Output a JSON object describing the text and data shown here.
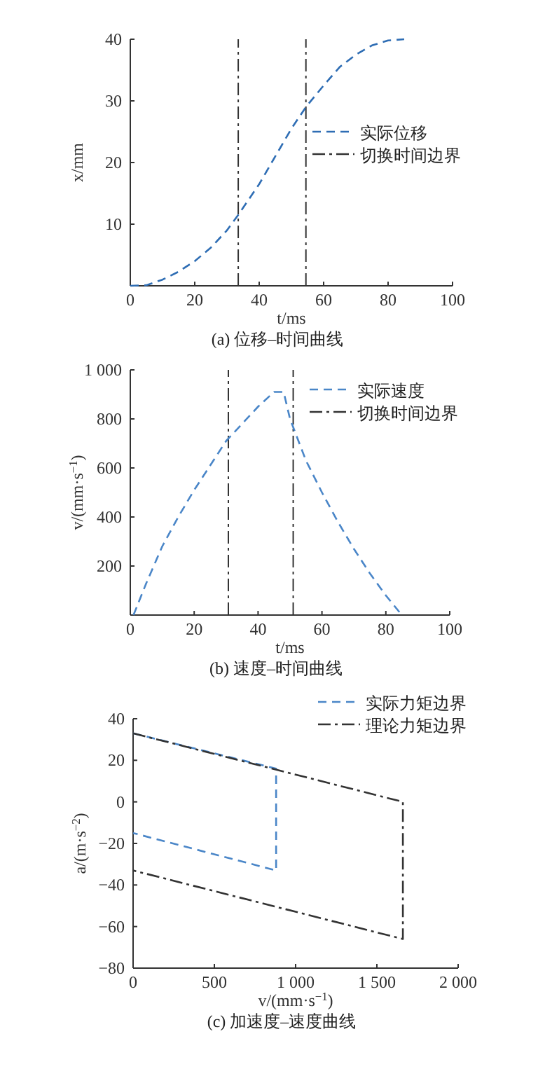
{
  "chart_data": [
    {
      "type": "line",
      "title": "(a) 位移–时间曲线",
      "xlabel": "t/ms",
      "ylabel": "x/mm",
      "xlim": [
        0,
        100
      ],
      "ylim": [
        0,
        40
      ],
      "xticks": [
        0,
        20,
        40,
        60,
        80,
        100
      ],
      "yticks": [
        10,
        20,
        30,
        40
      ],
      "grid": false,
      "legend": "right",
      "line_style": "dashed",
      "x": [
        0,
        5,
        10,
        15,
        20,
        25,
        30,
        33.5,
        40,
        45,
        50,
        54.5,
        60,
        65,
        70,
        75,
        80,
        85
      ],
      "series": [
        {
          "name": "实际位移",
          "color": "#2e6db4",
          "values": [
            0,
            0.1,
            1,
            2.3,
            4,
            6.2,
            9,
            11.5,
            16.5,
            21,
            25.5,
            29,
            32.5,
            35.5,
            37.5,
            39,
            39.8,
            40
          ]
        }
      ],
      "ref_lines": [
        {
          "axis": "x",
          "value": 33.5,
          "label": "切换时间边界",
          "color": "#333333",
          "line_style": "dashdot"
        },
        {
          "axis": "x",
          "value": 54.5,
          "color": "#333333",
          "line_style": "dashdot"
        }
      ]
    },
    {
      "type": "line",
      "title": "(b) 速度–时间曲线",
      "xlabel": "t/ms",
      "ylabel": "v/(mm·s$^{−1}$)",
      "xlim": [
        0,
        100
      ],
      "ylim": [
        0,
        1000
      ],
      "xticks": [
        0,
        20,
        40,
        60,
        80,
        100
      ],
      "yticks": [
        200,
        400,
        600,
        800,
        {
          "value": 1000,
          "label": "1 000"
        }
      ],
      "grid": false,
      "legend": "top right",
      "line_style": "dashed",
      "x": [
        1,
        5,
        10,
        15,
        20,
        25,
        30,
        35,
        40,
        45,
        48,
        50,
        55,
        60,
        65,
        70,
        75,
        80,
        85
      ],
      "series": [
        {
          "name": "实际速度",
          "color": "#4a86c8",
          "values": [
            0,
            130,
            280,
            400,
            510,
            610,
            710,
            780,
            850,
            910,
            910,
            800,
            630,
            500,
            380,
            270,
            170,
            80,
            0
          ]
        }
      ],
      "ref_lines": [
        {
          "axis": "x",
          "value": 30.7,
          "label": "切换时间边界",
          "color": "#333333",
          "line_style": "dashdot"
        },
        {
          "axis": "x",
          "value": 51,
          "color": "#333333",
          "line_style": "dashdot"
        }
      ]
    },
    {
      "type": "line",
      "title": "(c) 加速度–速度曲线",
      "xlabel": "v/(mm·s$^{−1}$)",
      "ylabel": "a/(m·s$^{−2}$)",
      "xlim": [
        0,
        2000
      ],
      "ylim": [
        -80,
        40
      ],
      "xticks": [
        0,
        500,
        {
          "value": 1000,
          "label": "1 000"
        },
        {
          "value": 1500,
          "label": "1 500"
        },
        {
          "value": 2000,
          "label": "2 000"
        }
      ],
      "yticks": [
        {
          "value": -80,
          "label": "−80"
        },
        {
          "value": -60,
          "label": "−60"
        },
        {
          "value": -40,
          "label": "−40"
        },
        {
          "value": -20,
          "label": "−20"
        },
        0,
        20,
        40
      ],
      "grid": false,
      "legend": "top right",
      "series": [
        {
          "name": "实际力矩边界",
          "color": "#4a86c8",
          "line_style": "dashed",
          "x": [
            0,
            880,
            880,
            0
          ],
          "values": [
            33,
            16,
            -33,
            -15
          ]
        },
        {
          "name": "理论力矩边界",
          "color": "#333333",
          "line_style": "dashdot",
          "x": [
            0,
            1660,
            1660,
            0
          ],
          "values": [
            33,
            0,
            -66,
            -33
          ]
        }
      ]
    }
  ]
}
